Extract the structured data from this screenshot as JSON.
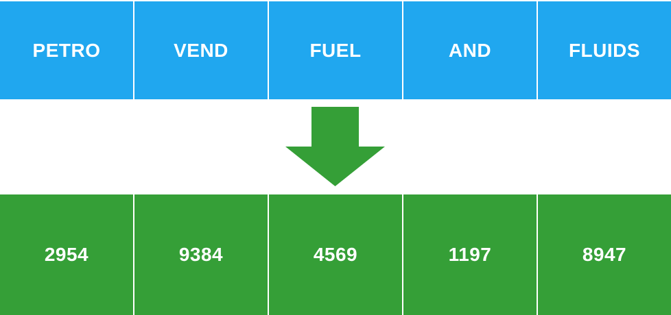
{
  "colors": {
    "top_cells": "#20a7ef",
    "bottom_cells": "#359f37",
    "arrow": "#359f37",
    "text": "#ffffff"
  },
  "top_row": {
    "cells": [
      "PETRO",
      "VEND",
      "FUEL",
      "AND",
      "FLUIDS"
    ]
  },
  "bottom_row": {
    "cells": [
      "2954",
      "9384",
      "4569",
      "1197",
      "8947"
    ]
  },
  "arrow": {
    "icon": "arrow-down-icon",
    "direction": "down"
  }
}
